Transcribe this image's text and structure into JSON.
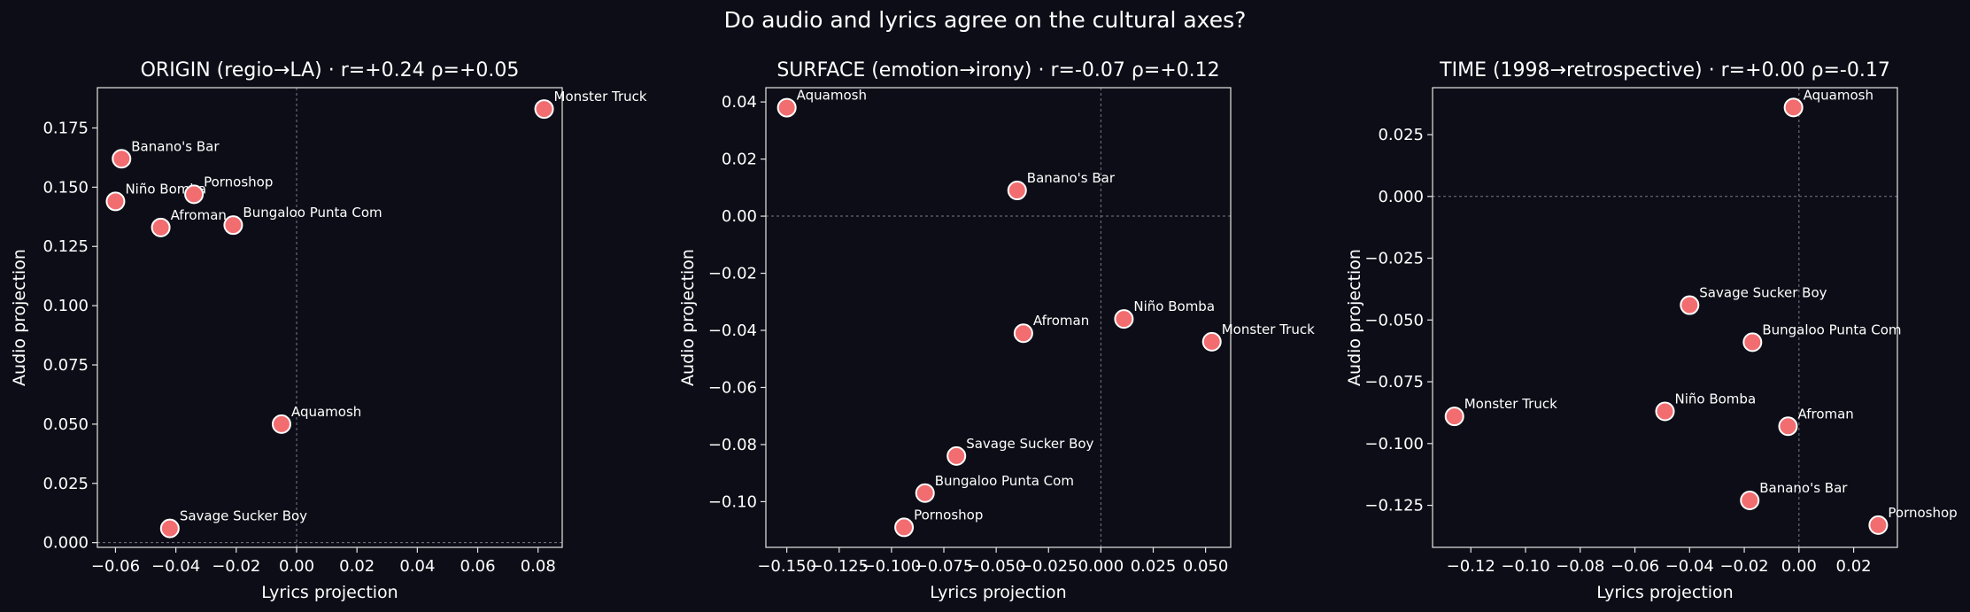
{
  "figure": {
    "title": "Do audio and lyrics agree on the cultural axes?",
    "background": "#0d0d17",
    "point_color": "#f26d70",
    "point_edge": "#ffffff"
  },
  "chart_data": [
    {
      "type": "scatter",
      "title": "ORIGIN (regio→LA)  ·  r=+0.24  ρ=+0.05",
      "xlabel": "Lyrics projection",
      "ylabel": "Audio projection",
      "xlim": [
        -0.066,
        0.088
      ],
      "ylim": [
        -0.002,
        0.192
      ],
      "xticks": [
        -0.06,
        -0.04,
        -0.02,
        0.0,
        0.02,
        0.04,
        0.06,
        0.08
      ],
      "xtick_labels": [
        "−0.06",
        "−0.04",
        "−0.02",
        "0.00",
        "0.02",
        "0.04",
        "0.06",
        "0.08"
      ],
      "yticks": [
        0.0,
        0.025,
        0.05,
        0.075,
        0.1,
        0.125,
        0.15,
        0.175
      ],
      "ytick_labels": [
        "0.000",
        "0.025",
        "0.050",
        "0.075",
        "0.100",
        "0.125",
        "0.150",
        "0.175"
      ],
      "zero_lines": true,
      "points": [
        {
          "label": "Monster Truck",
          "x": 0.082,
          "y": 0.183
        },
        {
          "label": "Banano's Bar",
          "x": -0.058,
          "y": 0.162
        },
        {
          "label": "Niño Bomba",
          "x": -0.06,
          "y": 0.144
        },
        {
          "label": "Pornoshop",
          "x": -0.034,
          "y": 0.147
        },
        {
          "label": "Afroman",
          "x": -0.045,
          "y": 0.133
        },
        {
          "label": "Bungaloo Punta Com",
          "x": -0.021,
          "y": 0.134
        },
        {
          "label": "Aquamosh",
          "x": -0.005,
          "y": 0.05
        },
        {
          "label": "Savage Sucker Boy",
          "x": -0.042,
          "y": 0.006
        }
      ]
    },
    {
      "type": "scatter",
      "title": "SURFACE (emotion→irony)  ·  r=-0.07  ρ=+0.12",
      "xlabel": "Lyrics projection",
      "ylabel": "Audio projection",
      "xlim": [
        -0.16,
        0.062
      ],
      "ylim": [
        -0.116,
        0.045
      ],
      "xticks": [
        -0.15,
        -0.125,
        -0.1,
        -0.075,
        -0.05,
        -0.025,
        0.0,
        0.025,
        0.05
      ],
      "xtick_labels": [
        "−0.150",
        "−0.125",
        "−0.100",
        "−0.075",
        "−0.050",
        "−0.025",
        "0.000",
        "0.025",
        "0.050"
      ],
      "yticks": [
        -0.1,
        -0.08,
        -0.06,
        -0.04,
        -0.02,
        0.0,
        0.02,
        0.04
      ],
      "ytick_labels": [
        "−0.10",
        "−0.08",
        "−0.06",
        "−0.04",
        "−0.02",
        "0.00",
        "0.02",
        "0.04"
      ],
      "zero_lines": true,
      "points": [
        {
          "label": "Aquamosh",
          "x": -0.15,
          "y": 0.038
        },
        {
          "label": "Banano's Bar",
          "x": -0.04,
          "y": 0.009
        },
        {
          "label": "Niño Bomba",
          "x": 0.011,
          "y": -0.036
        },
        {
          "label": "Afroman",
          "x": -0.037,
          "y": -0.041
        },
        {
          "label": "Monster Truck",
          "x": 0.053,
          "y": -0.044
        },
        {
          "label": "Savage Sucker Boy",
          "x": -0.069,
          "y": -0.084
        },
        {
          "label": "Bungaloo Punta Com",
          "x": -0.084,
          "y": -0.097
        },
        {
          "label": "Pornoshop",
          "x": -0.094,
          "y": -0.109
        }
      ]
    },
    {
      "type": "scatter",
      "title": "TIME (1998→retrospective)  ·  r=+0.00  ρ=-0.17",
      "xlabel": "Lyrics projection",
      "ylabel": "Audio projection",
      "xlim": [
        -0.134,
        0.036
      ],
      "ylim": [
        -0.142,
        0.044
      ],
      "xticks": [
        -0.12,
        -0.1,
        -0.08,
        -0.06,
        -0.04,
        -0.02,
        0.0,
        0.02
      ],
      "xtick_labels": [
        "−0.12",
        "−0.10",
        "−0.08",
        "−0.06",
        "−0.04",
        "−0.02",
        "0.00",
        "0.02"
      ],
      "yticks": [
        -0.125,
        -0.1,
        -0.075,
        -0.05,
        -0.025,
        0.0,
        0.025
      ],
      "ytick_labels": [
        "−0.125",
        "−0.100",
        "−0.075",
        "−0.050",
        "−0.025",
        "0.000",
        "0.025"
      ],
      "zero_lines": true,
      "points": [
        {
          "label": "Aquamosh",
          "x": -0.002,
          "y": 0.036
        },
        {
          "label": "Savage Sucker Boy",
          "x": -0.04,
          "y": -0.044
        },
        {
          "label": "Bungaloo Punta Com",
          "x": -0.017,
          "y": -0.059
        },
        {
          "label": "Monster Truck",
          "x": -0.126,
          "y": -0.089
        },
        {
          "label": "Niño Bomba",
          "x": -0.049,
          "y": -0.087
        },
        {
          "label": "Afroman",
          "x": -0.004,
          "y": -0.093
        },
        {
          "label": "Banano's Bar",
          "x": -0.018,
          "y": -0.123
        },
        {
          "label": "Pornoshop",
          "x": 0.029,
          "y": -0.133
        }
      ]
    }
  ]
}
